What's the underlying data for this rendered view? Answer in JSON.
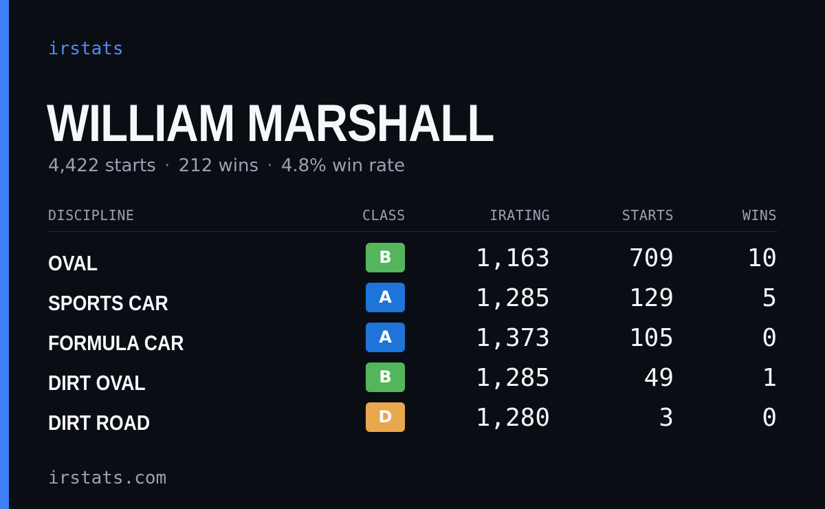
{
  "brand": "irstats",
  "driver": {
    "name": "WILLIAM MARSHALL",
    "starts_text": "4,422 starts",
    "wins_text": "212 wins",
    "win_rate_text": "4.8% win rate",
    "separator": "·"
  },
  "table": {
    "headers": {
      "discipline": "DISCIPLINE",
      "class": "CLASS",
      "irating": "IRATING",
      "starts": "STARTS",
      "wins": "WINS"
    },
    "rows": [
      {
        "discipline": "OVAL",
        "class": "B",
        "irating": "1,163",
        "starts": "709",
        "wins": "10"
      },
      {
        "discipline": "SPORTS CAR",
        "class": "A",
        "irating": "1,285",
        "starts": "129",
        "wins": "5"
      },
      {
        "discipline": "FORMULA CAR",
        "class": "A",
        "irating": "1,373",
        "starts": "105",
        "wins": "0"
      },
      {
        "discipline": "DIRT OVAL",
        "class": "B",
        "irating": "1,285",
        "starts": "49",
        "wins": "1"
      },
      {
        "discipline": "DIRT ROAD",
        "class": "D",
        "irating": "1,280",
        "starts": "3",
        "wins": "0"
      }
    ]
  },
  "class_colors": {
    "A": "#1e74d8",
    "B": "#55b55c",
    "D": "#e9a74e"
  },
  "accent_color": "#3d7ff5",
  "footer": {
    "url": "irstats.com"
  }
}
